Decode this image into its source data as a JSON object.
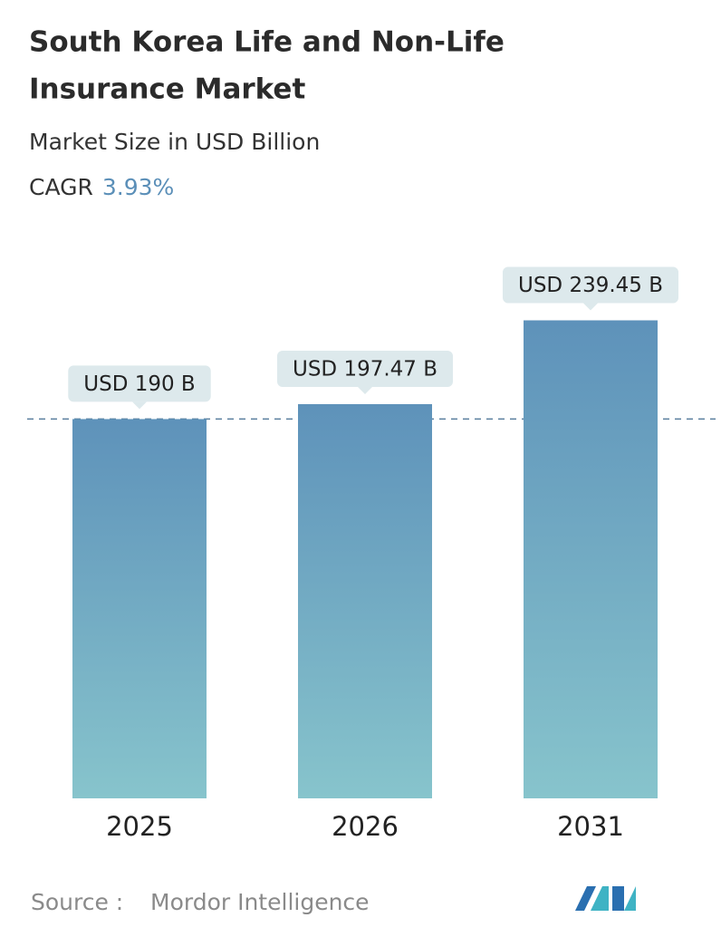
{
  "chart_data": {
    "type": "bar",
    "title_lines": [
      "South Korea Life and Non-Life",
      "Insurance Market"
    ],
    "subtitle": "Market Size in USD Billion",
    "cagr_label": "CAGR",
    "cagr_value": "3.93%",
    "categories": [
      "2025",
      "2026",
      "2031"
    ],
    "values": [
      190,
      197.47,
      239.45
    ],
    "value_labels": [
      "USD 190 B",
      "USD 197.47 B",
      "USD 239.45 B"
    ],
    "color_top": "#5e92ba",
    "color_bottom": "#87c4cc",
    "source_label": "Source :",
    "source": "Mordor Intelligence"
  }
}
